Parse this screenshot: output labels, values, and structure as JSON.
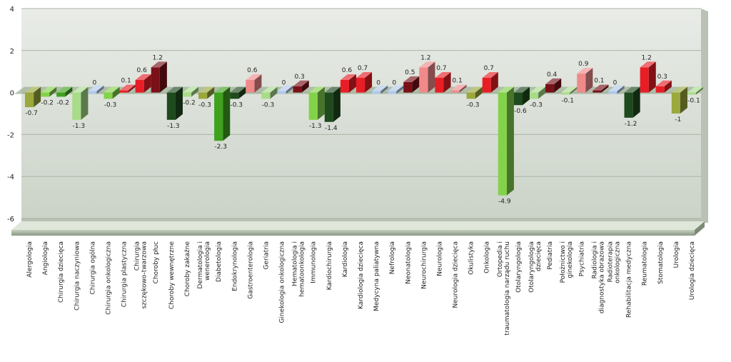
{
  "chart_data": {
    "type": "bar",
    "title": "",
    "xlabel": "",
    "ylabel": "",
    "ylim": [
      -6,
      4
    ],
    "yticks": [
      4,
      2,
      0,
      -2,
      -4,
      -6
    ],
    "grid": true,
    "legend": "none",
    "colors": {
      "pos_dark": "#7a1018",
      "pos_red": "#e81e26",
      "pos_pink": "#f08a8a",
      "neg_light": "#82d24a",
      "neg_green": "#3fa21e",
      "neg_dark": "#1e4a1e",
      "neg_olive": "#9aa83c",
      "neg_pale": "#a8dc88",
      "zero": "#b0c8e8",
      "plot_bg_top": "#e7ebe5",
      "plot_bg_bottom": "#cfd6cc",
      "floor": "#8f9c87"
    },
    "categories": [
      "Alergologia",
      "Angiologia",
      "Chirurgia dziecięca",
      "Chirurgia naczyniowa",
      "Chirurgia ogólna",
      "Chirurgia onkologiczna",
      "Chirurgia plastyczna",
      "Chirurgia szczękowo-twarzowa",
      "Choroby płuc",
      "Choroby wewnętrzne",
      "Choroby zakaźne",
      "Dermatologia i wenerologia",
      "Diabetologia",
      "Endokrynologia",
      "Gastroenterologia",
      "Geriatria",
      "Ginekologia onkologiczna",
      "Hematologia i hematoonkologia",
      "Immunologia",
      "Kardiochirurgia",
      "Kardiologia",
      "Kardiologia dziecięca",
      "Medycyna paliatywna",
      "Nefrologia",
      "Neonatologia",
      "Neurochirurgia",
      "Neurologia",
      "Neurologia dziecięca",
      "Okulistyka",
      "Onkologia",
      "Ortopedia i traumatologia narządu ruchu",
      "Otolaryngologia",
      "Otolaryngologia dziecięca",
      "Pediatria",
      "Położnictwo i ginekologia",
      "Psychiatria",
      "Radiologia i diagnostyka obrazowa",
      "Radioterapia onkologiczna",
      "Rehabilitacja medyczna",
      "Reumatologia",
      "Stomatologia",
      "Urologia",
      "Urologia dziecięca"
    ],
    "values": [
      -0.7,
      -0.2,
      -0.2,
      -1.3,
      0,
      -0.3,
      0.1,
      0.6,
      1.2,
      -1.3,
      -0.2,
      -0.3,
      -2.3,
      -0.3,
      0.6,
      -0.3,
      0,
      0.3,
      -1.3,
      -1.4,
      0.6,
      0.7,
      0,
      0,
      0.5,
      1.2,
      0.7,
      0.1,
      -0.3,
      0.7,
      -4.9,
      -0.6,
      -0.3,
      0.4,
      -0.1,
      0.9,
      0.1,
      0,
      -1.2,
      1.2,
      0.3,
      -1,
      -0.1
    ],
    "data_labels": [
      "-0.7",
      "-0.2",
      "-0.2",
      "-1.3",
      "0",
      "-0.3",
      "0.1",
      "0.6",
      "1.2",
      "-1.3",
      "-0.2",
      "-0.3",
      "-2.3",
      "-0.3",
      "0.6",
      "-0.3",
      "0",
      "0.3",
      "-1.3",
      "-1.4",
      "0.6",
      "0.7",
      "0",
      "0",
      "0.5",
      "1.2",
      "0.7",
      "0.1",
      "-0.3",
      "0.7",
      "-4.9",
      "-0.6",
      "-0.3",
      "0.4",
      "-0.1",
      "0.9",
      "0.1",
      "0",
      "-1.2",
      "1.2",
      "0.3",
      "-1",
      "-0.1"
    ],
    "bar_colors": [
      "neg_olive",
      "neg_light",
      "neg_green",
      "neg_pale",
      "zero",
      "neg_light",
      "pos_red",
      "pos_red",
      "pos_dark",
      "neg_dark",
      "neg_pale",
      "neg_olive",
      "neg_green",
      "neg_dark",
      "pos_pink",
      "neg_pale",
      "zero",
      "pos_dark",
      "neg_light",
      "neg_dark",
      "pos_red",
      "pos_red",
      "zero",
      "zero",
      "pos_dark",
      "pos_pink",
      "pos_red",
      "pos_pink",
      "neg_olive",
      "pos_red",
      "neg_light",
      "neg_dark",
      "neg_pale",
      "pos_dark",
      "neg_pale",
      "pos_pink",
      "pos_dark",
      "zero",
      "neg_dark",
      "pos_red",
      "pos_red",
      "neg_olive",
      "neg_pale"
    ]
  }
}
